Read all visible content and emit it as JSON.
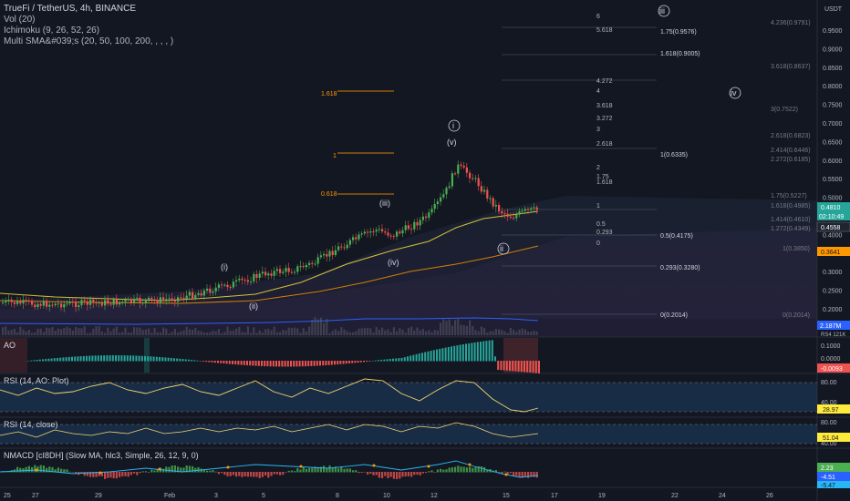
{
  "header": {
    "title": "TrueFi / TetherUS, 4h, BINANCE",
    "indicators": [
      "Vol (20)",
      "Ichimoku (9, 26, 52, 26)",
      "Multi SMA&#039;s (20, 50, 100, 200, , , , )"
    ]
  },
  "price_axis": {
    "currency": "USDT",
    "ticks": [
      "0.9500",
      "0.9000",
      "0.8500",
      "0.8000",
      "0.7500",
      "0.7000",
      "0.6500",
      "0.6000",
      "0.5500",
      "0.5000",
      "0.4500",
      "0.4000",
      "0.3500",
      "0.3000",
      "0.2500",
      "0.2000"
    ],
    "badges": {
      "last_price": "0.4810",
      "countdown": "02:10:49",
      "second": "0.4558",
      "ma_level": "0.3641",
      "volume": "2.187M",
      "partial": "RS4 121K"
    }
  },
  "time_axis": {
    "labels": [
      "25",
      "27",
      "29",
      "Feb",
      "3",
      "5",
      "8",
      "10",
      "12",
      "15",
      "17",
      "19",
      "22",
      "24",
      "26"
    ]
  },
  "fib_left": {
    "labels": [
      "1.618",
      "1",
      "0.618"
    ]
  },
  "fib_right": {
    "labels": [
      "6",
      "5.618",
      "4.272",
      "4",
      "3.618",
      "3.272",
      "3",
      "2.618",
      "2",
      "1.75",
      "1.618",
      "1",
      "0.5",
      "0.293",
      "0"
    ],
    "values": [
      "1.75(0.9576)",
      "1.618(0.9005)",
      "1(0.6335)",
      "0.5(0.4175)",
      "0.293(0.3280)",
      "0(0.2014)"
    ]
  },
  "fib_far_right": {
    "values": [
      "4.236(0.9791)",
      "3.618(0.8637)",
      "3(0.7522)",
      "2.618(0.6823)",
      "2.414(0.6446)",
      "2.272(0.6185)",
      "1.75(0.5227)",
      "1.618(0.4985)",
      "1.414(0.4610)",
      "1.272(0.4349)",
      "1(0.3850)",
      "0(0.2014)"
    ]
  },
  "wave_labels": {
    "circled": [
      "iii",
      "iv",
      "i",
      "ii"
    ],
    "plain": [
      "(v)",
      "(iii)",
      "(iv)",
      "(i)",
      "(ii)"
    ]
  },
  "ao_panel": {
    "label": "AO",
    "ticks": [
      "0.1000",
      "0.0000"
    ],
    "value_badge": "-0.0093"
  },
  "rsi_ao_panel": {
    "label": "RSI (14, AO: Plot)",
    "ticks": [
      "80.00",
      "40.00"
    ],
    "value_badge": "28.97"
  },
  "rsi_close_panel": {
    "label": "RSI (14, close)",
    "ticks": [
      "80.00",
      "40.00"
    ],
    "value_badge": "51.04"
  },
  "nmacd_panel": {
    "label": "NMACD [cI8DH] (Slow MA, hlc3, Simple, 26, 12, 9, 0)",
    "badges": [
      "2.23",
      "-4.51",
      "-5.47"
    ]
  },
  "colors": {
    "background": "#131722",
    "up": "#26a69a",
    "up_candle": "#4caf50",
    "down": "#ef5350",
    "fib_orange": "#ff9800",
    "ma_blue": "#2962ff",
    "ma_yellow": "#ffeb3b",
    "rsi_fill": "#1e3a5f"
  }
}
